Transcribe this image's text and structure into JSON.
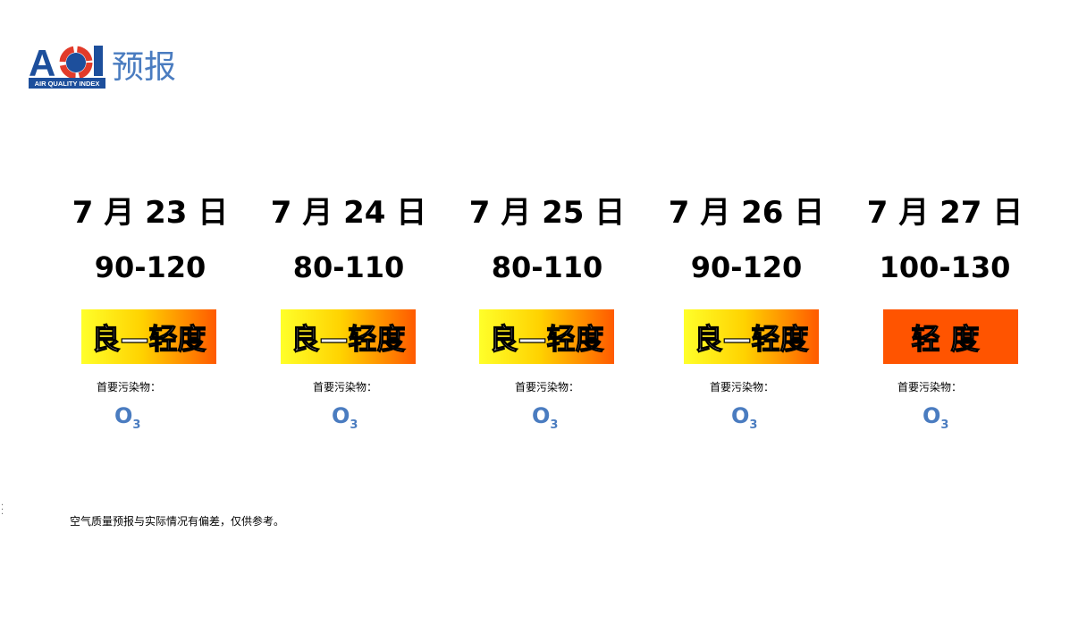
{
  "header": {
    "logo_text": "AQI",
    "logo_subtitle": "AIR QUALITY INDEX",
    "title": "预报"
  },
  "days": [
    {
      "date": "7 月 23 日",
      "range": "90-120",
      "level": "良—轻度",
      "level_style": "gradient",
      "pollutant_label": "首要污染物：",
      "pollutant": "O",
      "pollutant_sub": "3"
    },
    {
      "date": "7 月 24 日",
      "range": "80-110",
      "level": "良—轻度",
      "level_style": "gradient",
      "pollutant_label": "首要污染物：",
      "pollutant": "O",
      "pollutant_sub": "3"
    },
    {
      "date": "7 月 25 日",
      "range": "80-110",
      "level": "良—轻度",
      "level_style": "gradient",
      "pollutant_label": "首要污染物：",
      "pollutant": "O",
      "pollutant_sub": "3"
    },
    {
      "date": "7 月 26 日",
      "range": "90-120",
      "level": "良—轻度",
      "level_style": "gradient",
      "pollutant_label": "首要污染物：",
      "pollutant": "O",
      "pollutant_sub": "3"
    },
    {
      "date": "7 月 27 日",
      "range": "100-130",
      "level": "轻度",
      "level_style": "orange",
      "pollutant_label": "首要污染物：",
      "pollutant": "O",
      "pollutant_sub": "3"
    }
  ],
  "colors": {
    "title_blue": "#4a7cc0",
    "light_pollution": "#ff5400",
    "gradient_start": "#ffff2a"
  },
  "footer": {
    "note": "空气质量预报与实际情况有偏差，仅供参考。"
  }
}
